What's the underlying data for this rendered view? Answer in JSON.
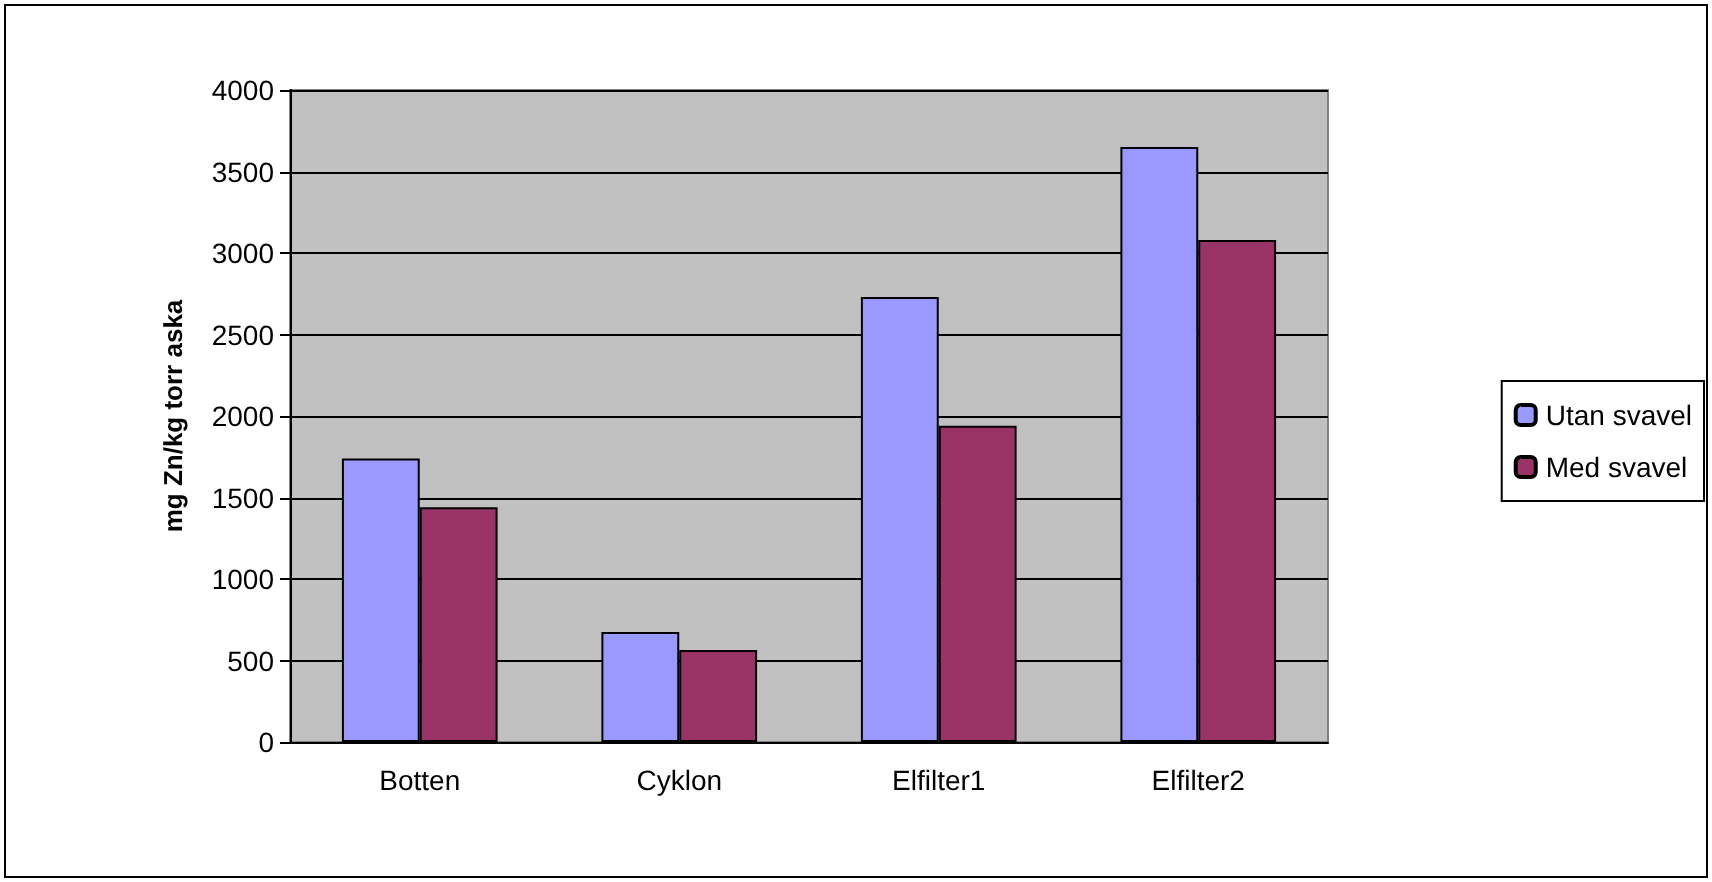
{
  "chart_data": {
    "type": "bar",
    "ylabel": "mg Zn/kg torr aska",
    "categories": [
      "Botten",
      "Cyklon",
      "Elfilter1",
      "Elfilter2"
    ],
    "series": [
      {
        "name": "Utan svavel",
        "color": "#9999ff",
        "values": [
          1740,
          675,
          2730,
          3650
        ]
      },
      {
        "name": "Med svavel",
        "color": "#993366",
        "values": [
          1440,
          565,
          1940,
          3080
        ]
      }
    ],
    "ylim": [
      0,
      4000
    ],
    "yticks": [
      0,
      500,
      1000,
      1500,
      2000,
      2500,
      3000,
      3500,
      4000
    ],
    "grid": "y",
    "legend": "right"
  }
}
